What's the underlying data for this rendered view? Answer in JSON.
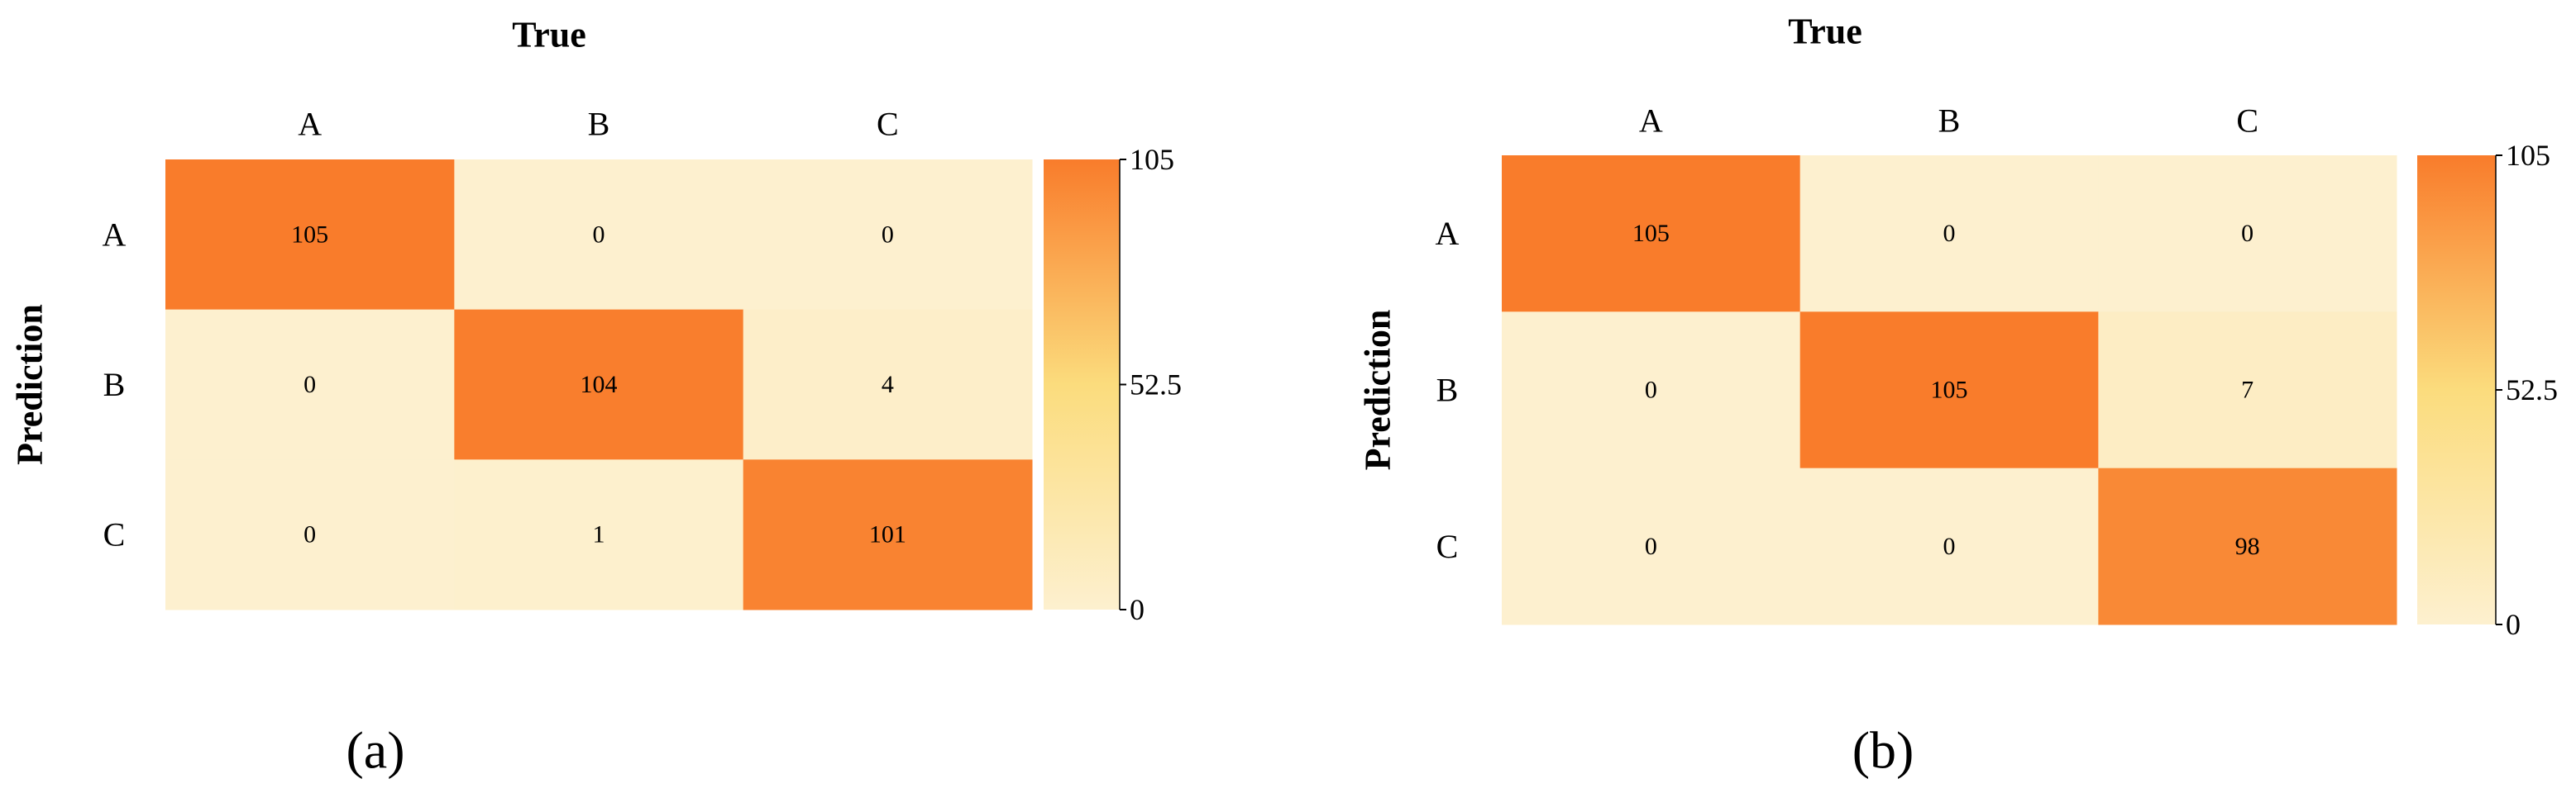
{
  "chart_data": [
    {
      "type": "heatmap",
      "panel_label": "(a)",
      "xlabel": "True",
      "ylabel": "Prediction",
      "x_categories": [
        "A",
        "B",
        "C"
      ],
      "y_categories": [
        "A",
        "B",
        "C"
      ],
      "values": [
        [
          105,
          0,
          0
        ],
        [
          0,
          104,
          4
        ],
        [
          0,
          1,
          101
        ]
      ],
      "colorbar": {
        "min": 0,
        "max": 105,
        "ticks": [
          "105",
          "52.5",
          "0"
        ]
      },
      "colors": {
        "low": "#fdf0cf",
        "mid": "#fbdc7d",
        "high": "#f97c2b"
      }
    },
    {
      "type": "heatmap",
      "panel_label": "(b)",
      "xlabel": "True",
      "ylabel": "Prediction",
      "x_categories": [
        "A",
        "B",
        "C"
      ],
      "y_categories": [
        "A",
        "B",
        "C"
      ],
      "values": [
        [
          105,
          0,
          0
        ],
        [
          0,
          105,
          7
        ],
        [
          0,
          0,
          98
        ]
      ],
      "colorbar": {
        "min": 0,
        "max": 105,
        "ticks": [
          "105",
          "52.5",
          "0"
        ]
      },
      "colors": {
        "low": "#fdf0cf",
        "mid": "#fbdc7d",
        "high": "#f97c2b"
      }
    }
  ]
}
